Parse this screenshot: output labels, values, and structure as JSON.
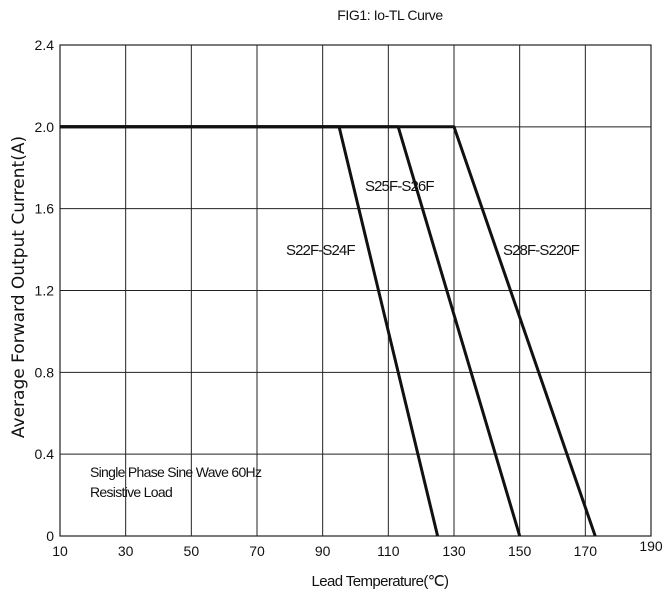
{
  "chart_data": {
    "type": "line",
    "title": "FIG1:  Io-TL Curve",
    "xlabel": "Lead Temperature(℃)",
    "ylabel": "Average Forward Output Current(A)",
    "xlim": [
      10,
      190
    ],
    "ylim": [
      0,
      2.4
    ],
    "xticks": [
      "10",
      "30",
      "50",
      "70",
      "90",
      "110",
      "130",
      "150",
      "170",
      "190"
    ],
    "yticks": [
      "0",
      "0.4",
      "0.8",
      "1.2",
      "1.6",
      "2.0",
      "2.4"
    ],
    "grid": true,
    "series": [
      {
        "name": "S22F-S24F",
        "points": [
          [
            10,
            2.0
          ],
          [
            95,
            2.0
          ],
          [
            125,
            0
          ]
        ]
      },
      {
        "name": "S25F-S26F",
        "points": [
          [
            10,
            2.0
          ],
          [
            113,
            2.0
          ],
          [
            150,
            0
          ]
        ]
      },
      {
        "name": "S28F-S220F",
        "points": [
          [
            10,
            2.0
          ],
          [
            130,
            2.0
          ],
          [
            173,
            0
          ]
        ]
      }
    ],
    "annotations": [
      "Single Phase  Sine Wave 60Hz",
      "Resistive Load"
    ]
  }
}
